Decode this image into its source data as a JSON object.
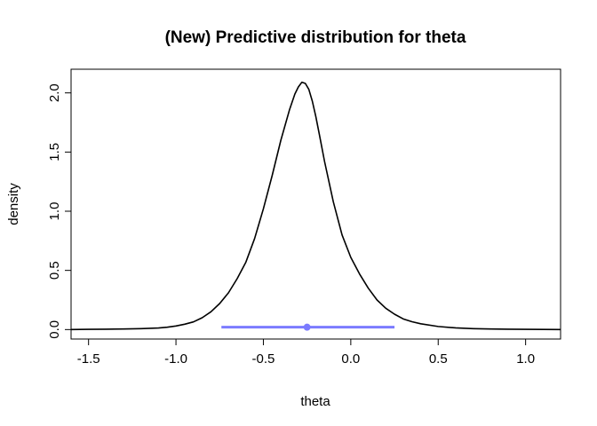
{
  "chart_data": {
    "type": "line",
    "title": "(New) Predictive distribution for theta",
    "xlabel": "theta",
    "ylabel": "density",
    "xlim": [
      -1.6,
      1.2
    ],
    "ylim": [
      -0.08,
      2.2
    ],
    "x_ticks": [
      -1.5,
      -1.0,
      -0.5,
      0.0,
      0.5,
      1.0
    ],
    "x_tick_labels": [
      "-1.5",
      "-1.0",
      "-0.5",
      "0.0",
      "0.5",
      "1.0"
    ],
    "y_ticks": [
      0.0,
      0.5,
      1.0,
      1.5,
      2.0
    ],
    "y_tick_labels": [
      "0.0",
      "0.5",
      "1.0",
      "1.5",
      "2.0"
    ],
    "grid": false,
    "series": [
      {
        "type": "line",
        "color": "#000000",
        "x": [
          -1.6,
          -1.5,
          -1.4,
          -1.3,
          -1.2,
          -1.1,
          -1.05,
          -1.0,
          -0.95,
          -0.9,
          -0.85,
          -0.8,
          -0.75,
          -0.7,
          -0.65,
          -0.6,
          -0.55,
          -0.5,
          -0.45,
          -0.4,
          -0.35,
          -0.32,
          -0.3,
          -0.28,
          -0.26,
          -0.24,
          -0.22,
          -0.2,
          -0.18,
          -0.15,
          -0.1,
          -0.05,
          0.0,
          0.05,
          0.1,
          0.15,
          0.2,
          0.25,
          0.3,
          0.35,
          0.4,
          0.5,
          0.6,
          0.7,
          0.8,
          0.9,
          1.0,
          1.1,
          1.2
        ],
        "y": [
          0.0,
          0.002,
          0.003,
          0.005,
          0.008,
          0.013,
          0.02,
          0.03,
          0.045,
          0.065,
          0.1,
          0.15,
          0.22,
          0.31,
          0.43,
          0.57,
          0.77,
          1.02,
          1.3,
          1.6,
          1.86,
          1.99,
          2.05,
          2.09,
          2.08,
          2.03,
          1.93,
          1.8,
          1.65,
          1.42,
          1.08,
          0.8,
          0.61,
          0.47,
          0.35,
          0.25,
          0.18,
          0.13,
          0.09,
          0.066,
          0.049,
          0.026,
          0.014,
          0.008,
          0.005,
          0.003,
          0.002,
          0.001,
          0.0
        ]
      }
    ],
    "interval": {
      "color": "#7b7bff",
      "y": 0.02,
      "lower": -0.74,
      "upper": 0.25,
      "point": -0.25
    }
  }
}
